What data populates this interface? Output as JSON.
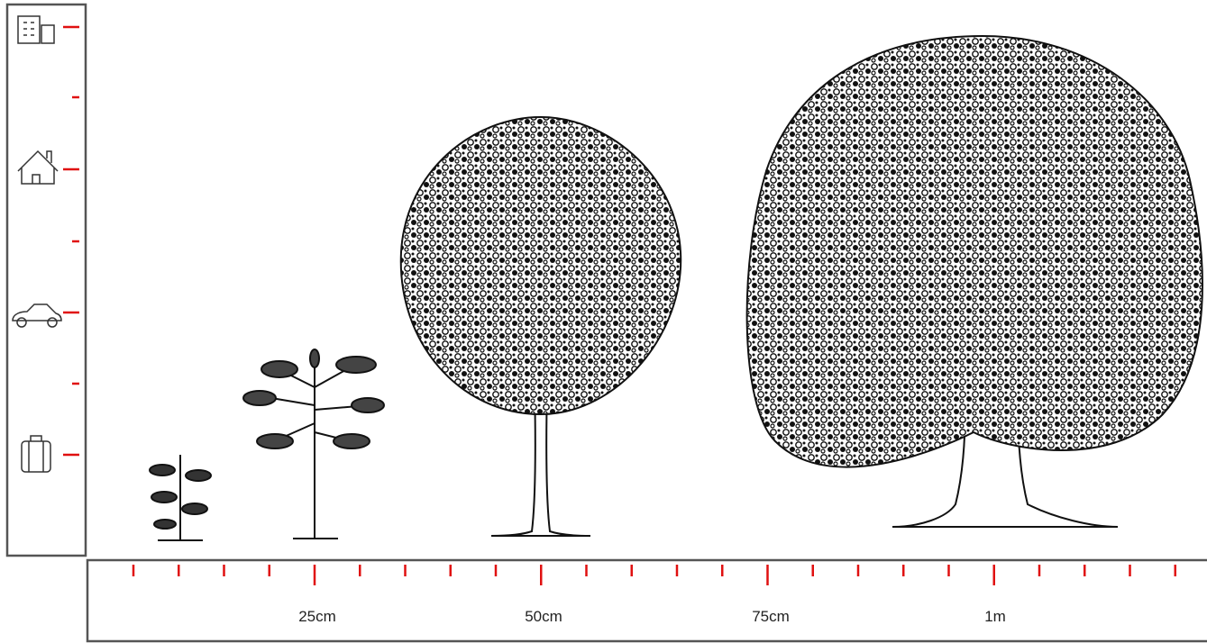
{
  "scale": {
    "labels": [
      "25cm",
      "50cm",
      "75cm",
      "1m"
    ]
  }
}
